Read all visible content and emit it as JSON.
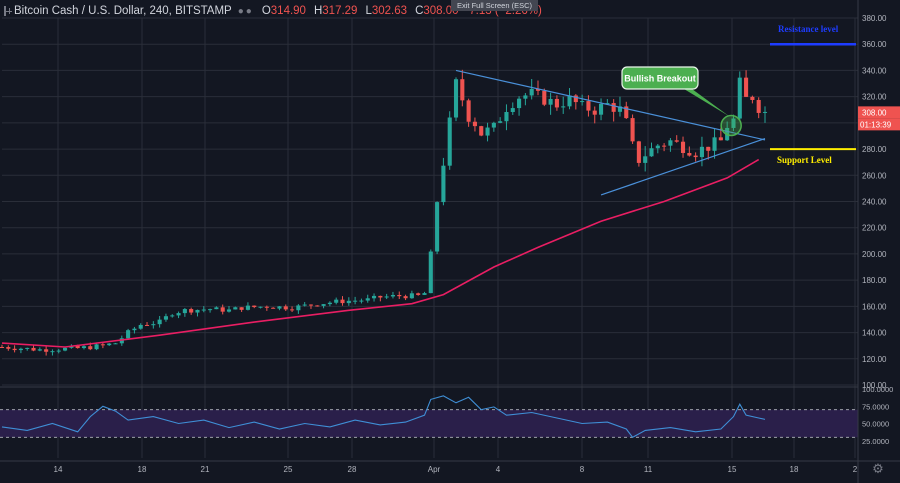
{
  "header": {
    "symbol": "Bitcoin Cash / U.S. Dollar, 240, BITSTAMP",
    "open_label": "O",
    "open": "314.90",
    "high_label": "H",
    "high": "317.29",
    "low_label": "L",
    "low": "302.63",
    "close_label": "C",
    "close": "308.00",
    "change": "−7.13 (−2.26%)"
  },
  "exit_fullscreen": "Exit Full Screen (ESC)",
  "chart_data": [
    {
      "type": "candlestick",
      "price_axis": {
        "min": 100,
        "max": 380,
        "ticks": [
          "100.00",
          "120.00",
          "140.00",
          "160.00",
          "180.00",
          "200.00",
          "220.00",
          "240.00",
          "260.00",
          "280.00",
          "300.00",
          "320.00",
          "340.00",
          "360.00",
          "380.00"
        ]
      },
      "time_axis": [
        "14",
        "18",
        "21",
        "25",
        "28",
        "Apr",
        "4",
        "8",
        "11",
        "15",
        "18",
        "2"
      ],
      "last_price_label": "308.00",
      "countdown_label": "01:13:39",
      "close_path": [
        [
          0,
          129
        ],
        [
          6,
          127
        ],
        [
          12,
          128
        ],
        [
          16,
          130
        ],
        [
          18,
          132
        ],
        [
          20,
          140
        ],
        [
          22,
          146
        ],
        [
          25,
          148
        ],
        [
          27,
          155
        ],
        [
          29,
          157
        ],
        [
          33,
          158
        ],
        [
          36,
          157
        ],
        [
          38,
          159
        ],
        [
          42,
          160
        ],
        [
          46,
          159
        ],
        [
          50,
          162
        ],
        [
          54,
          164
        ],
        [
          58,
          165
        ],
        [
          60,
          167
        ],
        [
          63,
          168
        ],
        [
          66,
          168
        ],
        [
          67,
          170
        ],
        [
          68,
          200
        ],
        [
          69,
          240
        ],
        [
          70,
          270
        ],
        [
          71,
          300
        ],
        [
          72,
          330
        ],
        [
          73,
          318
        ],
        [
          74,
          305
        ],
        [
          75,
          300
        ],
        [
          76,
          292
        ],
        [
          78,
          296
        ],
        [
          80,
          312
        ],
        [
          82,
          320
        ],
        [
          84,
          322
        ],
        [
          86,
          318
        ],
        [
          88,
          314
        ],
        [
          90,
          318
        ],
        [
          92,
          312
        ],
        [
          94,
          310
        ],
        [
          96,
          314
        ],
        [
          98,
          310
        ],
        [
          99,
          300
        ],
        [
          100,
          282
        ],
        [
          101,
          272
        ],
        [
          102,
          276
        ],
        [
          104,
          283
        ],
        [
          106,
          286
        ],
        [
          108,
          282
        ],
        [
          110,
          278
        ],
        [
          112,
          282
        ],
        [
          114,
          286
        ],
        [
          115,
          298
        ],
        [
          116,
          302
        ],
        [
          117,
          330
        ],
        [
          118,
          318
        ],
        [
          119,
          320
        ],
        [
          120,
          312
        ],
        [
          121,
          308
        ]
      ],
      "ma_series": [
        [
          0,
          132
        ],
        [
          10,
          129
        ],
        [
          25,
          138
        ],
        [
          40,
          148
        ],
        [
          55,
          157
        ],
        [
          65,
          162
        ],
        [
          70,
          169
        ],
        [
          78,
          190
        ],
        [
          85,
          205
        ],
        [
          95,
          225
        ],
        [
          105,
          240
        ],
        [
          115,
          258
        ],
        [
          120,
          272
        ]
      ],
      "rsi": {
        "levels": [
          "100.0000",
          "75.0000",
          "50.0000",
          "25.0000"
        ],
        "band": [
          30,
          70
        ],
        "values": [
          [
            0,
            45
          ],
          [
            4,
            40
          ],
          [
            8,
            50
          ],
          [
            12,
            38
          ],
          [
            14,
            60
          ],
          [
            16,
            75
          ],
          [
            18,
            68
          ],
          [
            20,
            55
          ],
          [
            24,
            60
          ],
          [
            28,
            50
          ],
          [
            32,
            55
          ],
          [
            36,
            44
          ],
          [
            40,
            52
          ],
          [
            44,
            42
          ],
          [
            48,
            50
          ],
          [
            52,
            45
          ],
          [
            56,
            55
          ],
          [
            60,
            48
          ],
          [
            64,
            52
          ],
          [
            67,
            62
          ],
          [
            68,
            85
          ],
          [
            70,
            90
          ],
          [
            72,
            80
          ],
          [
            74,
            88
          ],
          [
            76,
            70
          ],
          [
            78,
            74
          ],
          [
            80,
            62
          ],
          [
            84,
            66
          ],
          [
            88,
            58
          ],
          [
            92,
            50
          ],
          [
            96,
            52
          ],
          [
            99,
            42
          ],
          [
            100,
            30
          ],
          [
            102,
            40
          ],
          [
            106,
            44
          ],
          [
            110,
            38
          ],
          [
            114,
            42
          ],
          [
            116,
            60
          ],
          [
            117,
            78
          ],
          [
            118,
            62
          ],
          [
            120,
            58
          ],
          [
            121,
            56
          ]
        ]
      }
    }
  ],
  "annotations": {
    "resistance_label": "Resistance level",
    "resistance_price": 360,
    "support_label": "Support Level",
    "support_price": 280,
    "breakout_label": "Bullish Breakout"
  },
  "colors": {
    "bg": "#131722",
    "grid": "#2a2e39",
    "up": "#26a69a",
    "down": "#ef5350",
    "ma": "#e91e63",
    "trend": "#4a90d9",
    "resistance": "#1e3cff",
    "support": "#ffee00",
    "rsi": "#3f8fd6",
    "rsi_band": "#2a1f4a",
    "bubble": "#4caf50"
  }
}
